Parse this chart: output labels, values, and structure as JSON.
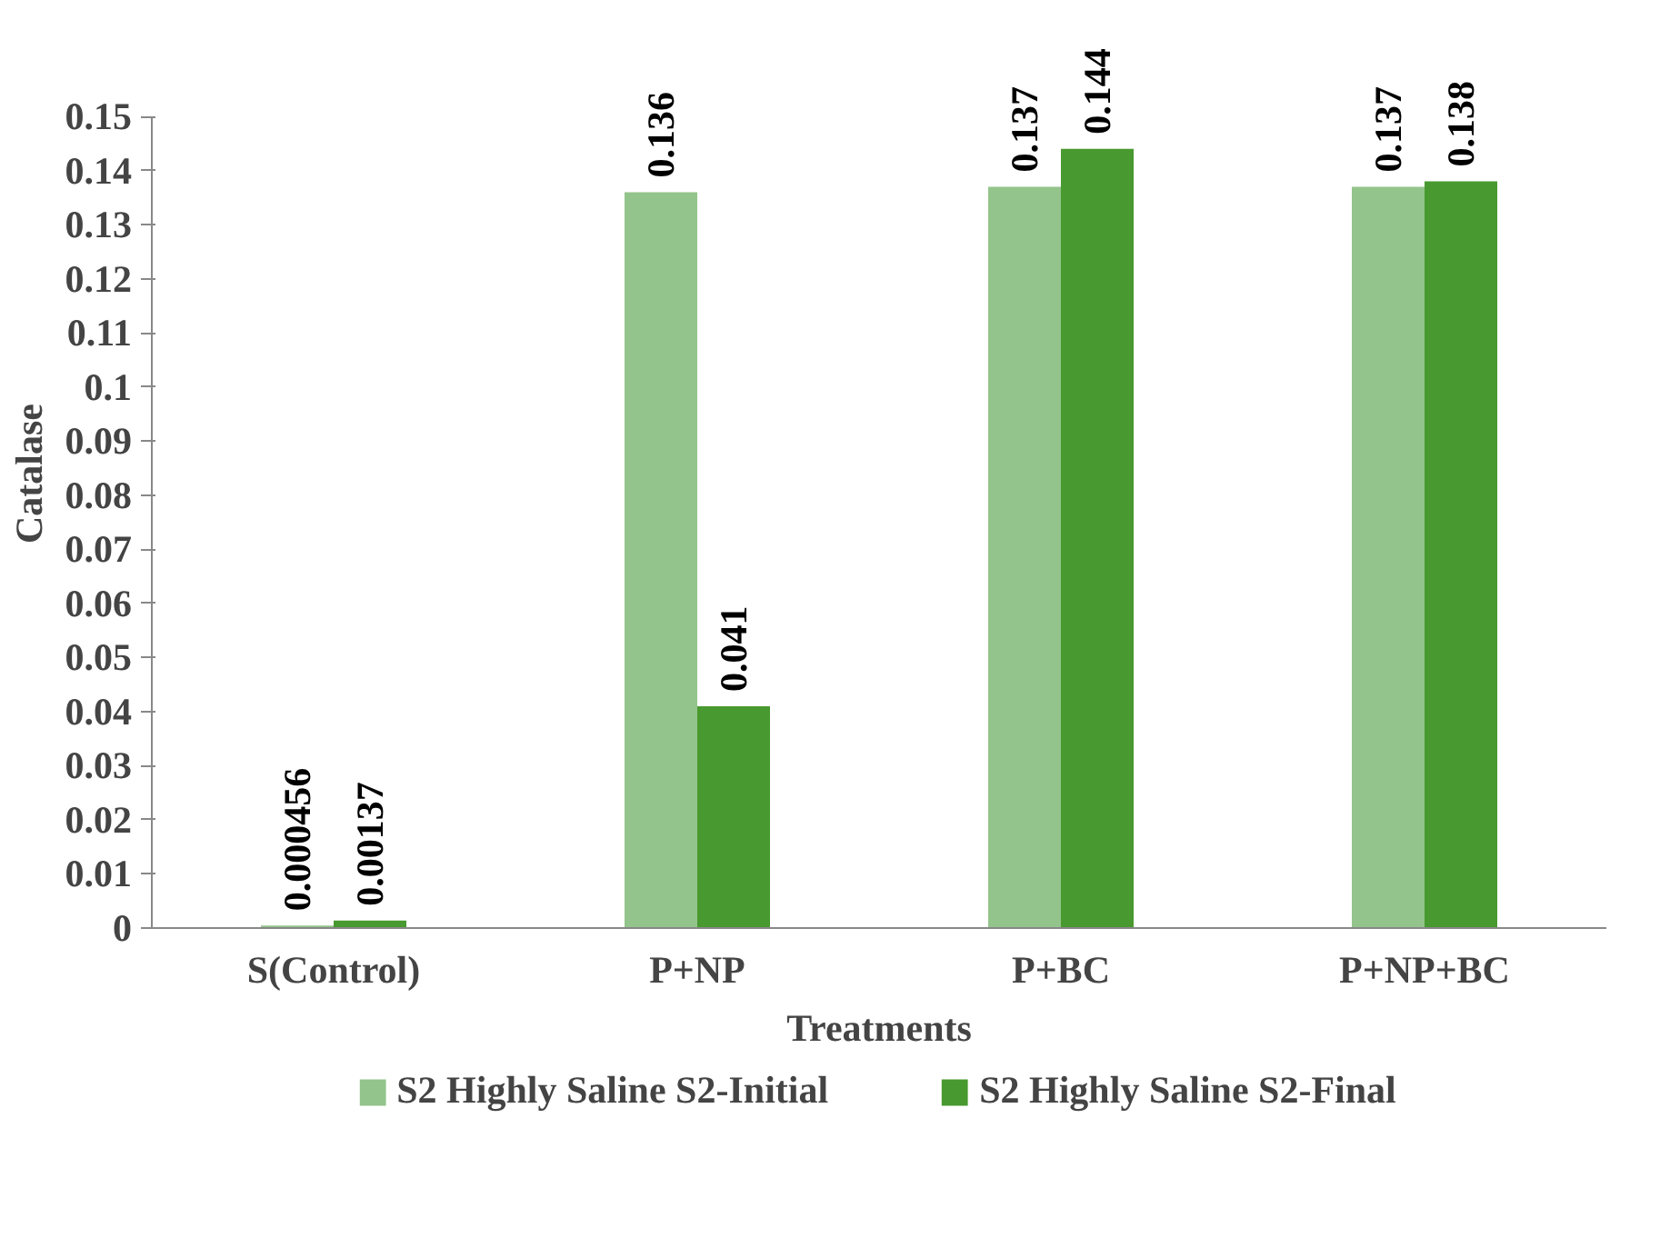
{
  "chart_data": {
    "type": "bar",
    "xlabel": "Treatments",
    "ylabel": "Catalase",
    "categories": [
      "S(Control)",
      "P+NP",
      "P+BC",
      "P+NP+BC"
    ],
    "series": [
      {
        "name": "S2 Highly Saline S2-Initial",
        "color": "#93c48b",
        "values": [
          0.000456,
          0.136,
          0.137,
          0.137
        ]
      },
      {
        "name": "S2 Highly Saline S2-Final",
        "color": "#48992f",
        "values": [
          0.00137,
          0.041,
          0.144,
          0.138
        ]
      }
    ],
    "ylim": [
      0,
      0.15
    ],
    "yticks": [
      0,
      0.01,
      0.02,
      0.03,
      0.04,
      0.05,
      0.06,
      0.07,
      0.08,
      0.09,
      0.1,
      0.11,
      0.12,
      0.13,
      0.14,
      0.15
    ],
    "data_labels": true,
    "grid": false,
    "legend": "bottom"
  }
}
